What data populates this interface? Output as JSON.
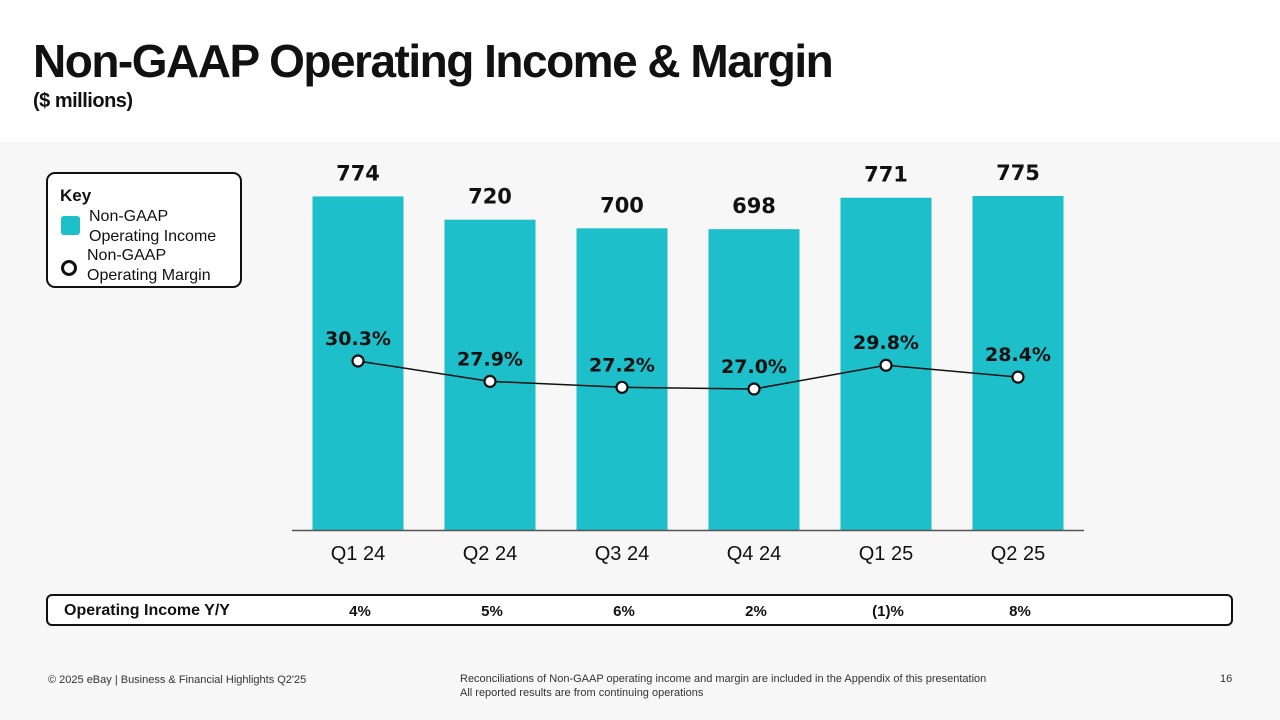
{
  "header": {
    "title": "Non-GAAP Operating Income & Margin",
    "subtitle": "($ millions)"
  },
  "legend": {
    "title": "Key",
    "income_label": "Non-GAAP Operating Income",
    "margin_label": "Non-GAAP Operating Margin"
  },
  "colors": {
    "bar": "#1dbfca",
    "line": "#111111",
    "marker_fill": "#ffffff"
  },
  "chart_data": {
    "type": "bar",
    "title": "Non-GAAP Operating Income & Margin",
    "ylabel": "($ millions)",
    "categories": [
      "Q1 24",
      "Q2 24",
      "Q3 24",
      "Q4 24",
      "Q1 25",
      "Q2 25"
    ],
    "series": [
      {
        "name": "Non-GAAP Operating Income",
        "kind": "bar",
        "values": [
          774,
          720,
          700,
          698,
          771,
          775
        ],
        "labels": [
          "774",
          "720",
          "700",
          "698",
          "771",
          "775"
        ]
      },
      {
        "name": "Non-GAAP Operating Margin",
        "kind": "line",
        "values": [
          30.3,
          27.9,
          27.2,
          27.0,
          29.8,
          28.4
        ],
        "labels": [
          "30.3%",
          "27.9%",
          "27.2%",
          "27.0%",
          "29.8%",
          "28.4%"
        ]
      }
    ],
    "ylim": [
      0,
      800
    ],
    "grid": false
  },
  "yoy": {
    "label": "Operating Income Y/Y",
    "values": [
      "4%",
      "5%",
      "6%",
      "2%",
      "(1)%",
      "8%"
    ]
  },
  "footer": {
    "left": "© 2025 eBay | Business & Financial Highlights Q2'25",
    "note_line1": "Reconciliations of Non-GAAP operating income and margin are included in the Appendix of this presentation",
    "note_line2": "All reported results are from continuing operations",
    "page": "16"
  }
}
